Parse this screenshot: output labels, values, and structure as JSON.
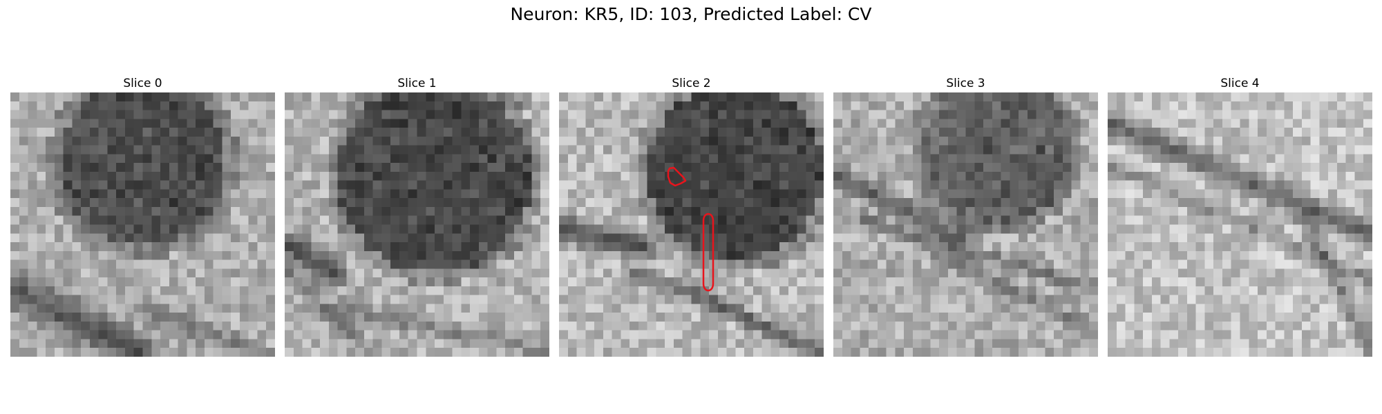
{
  "figure": {
    "title": "Neuron: KR5, ID: 103, Predicted Label: CV"
  },
  "panels": [
    {
      "title": "Slice 0"
    },
    {
      "title": "Slice 1"
    },
    {
      "title": "Slice 2"
    },
    {
      "title": "Slice 3"
    },
    {
      "title": "Slice 4"
    }
  ],
  "colors": {
    "background": "#ffffff",
    "contour": "#e8141c",
    "image_colormap": "grayscale"
  },
  "annotations": {
    "slice_with_contours": "Slice 2",
    "contour_count": 2
  }
}
